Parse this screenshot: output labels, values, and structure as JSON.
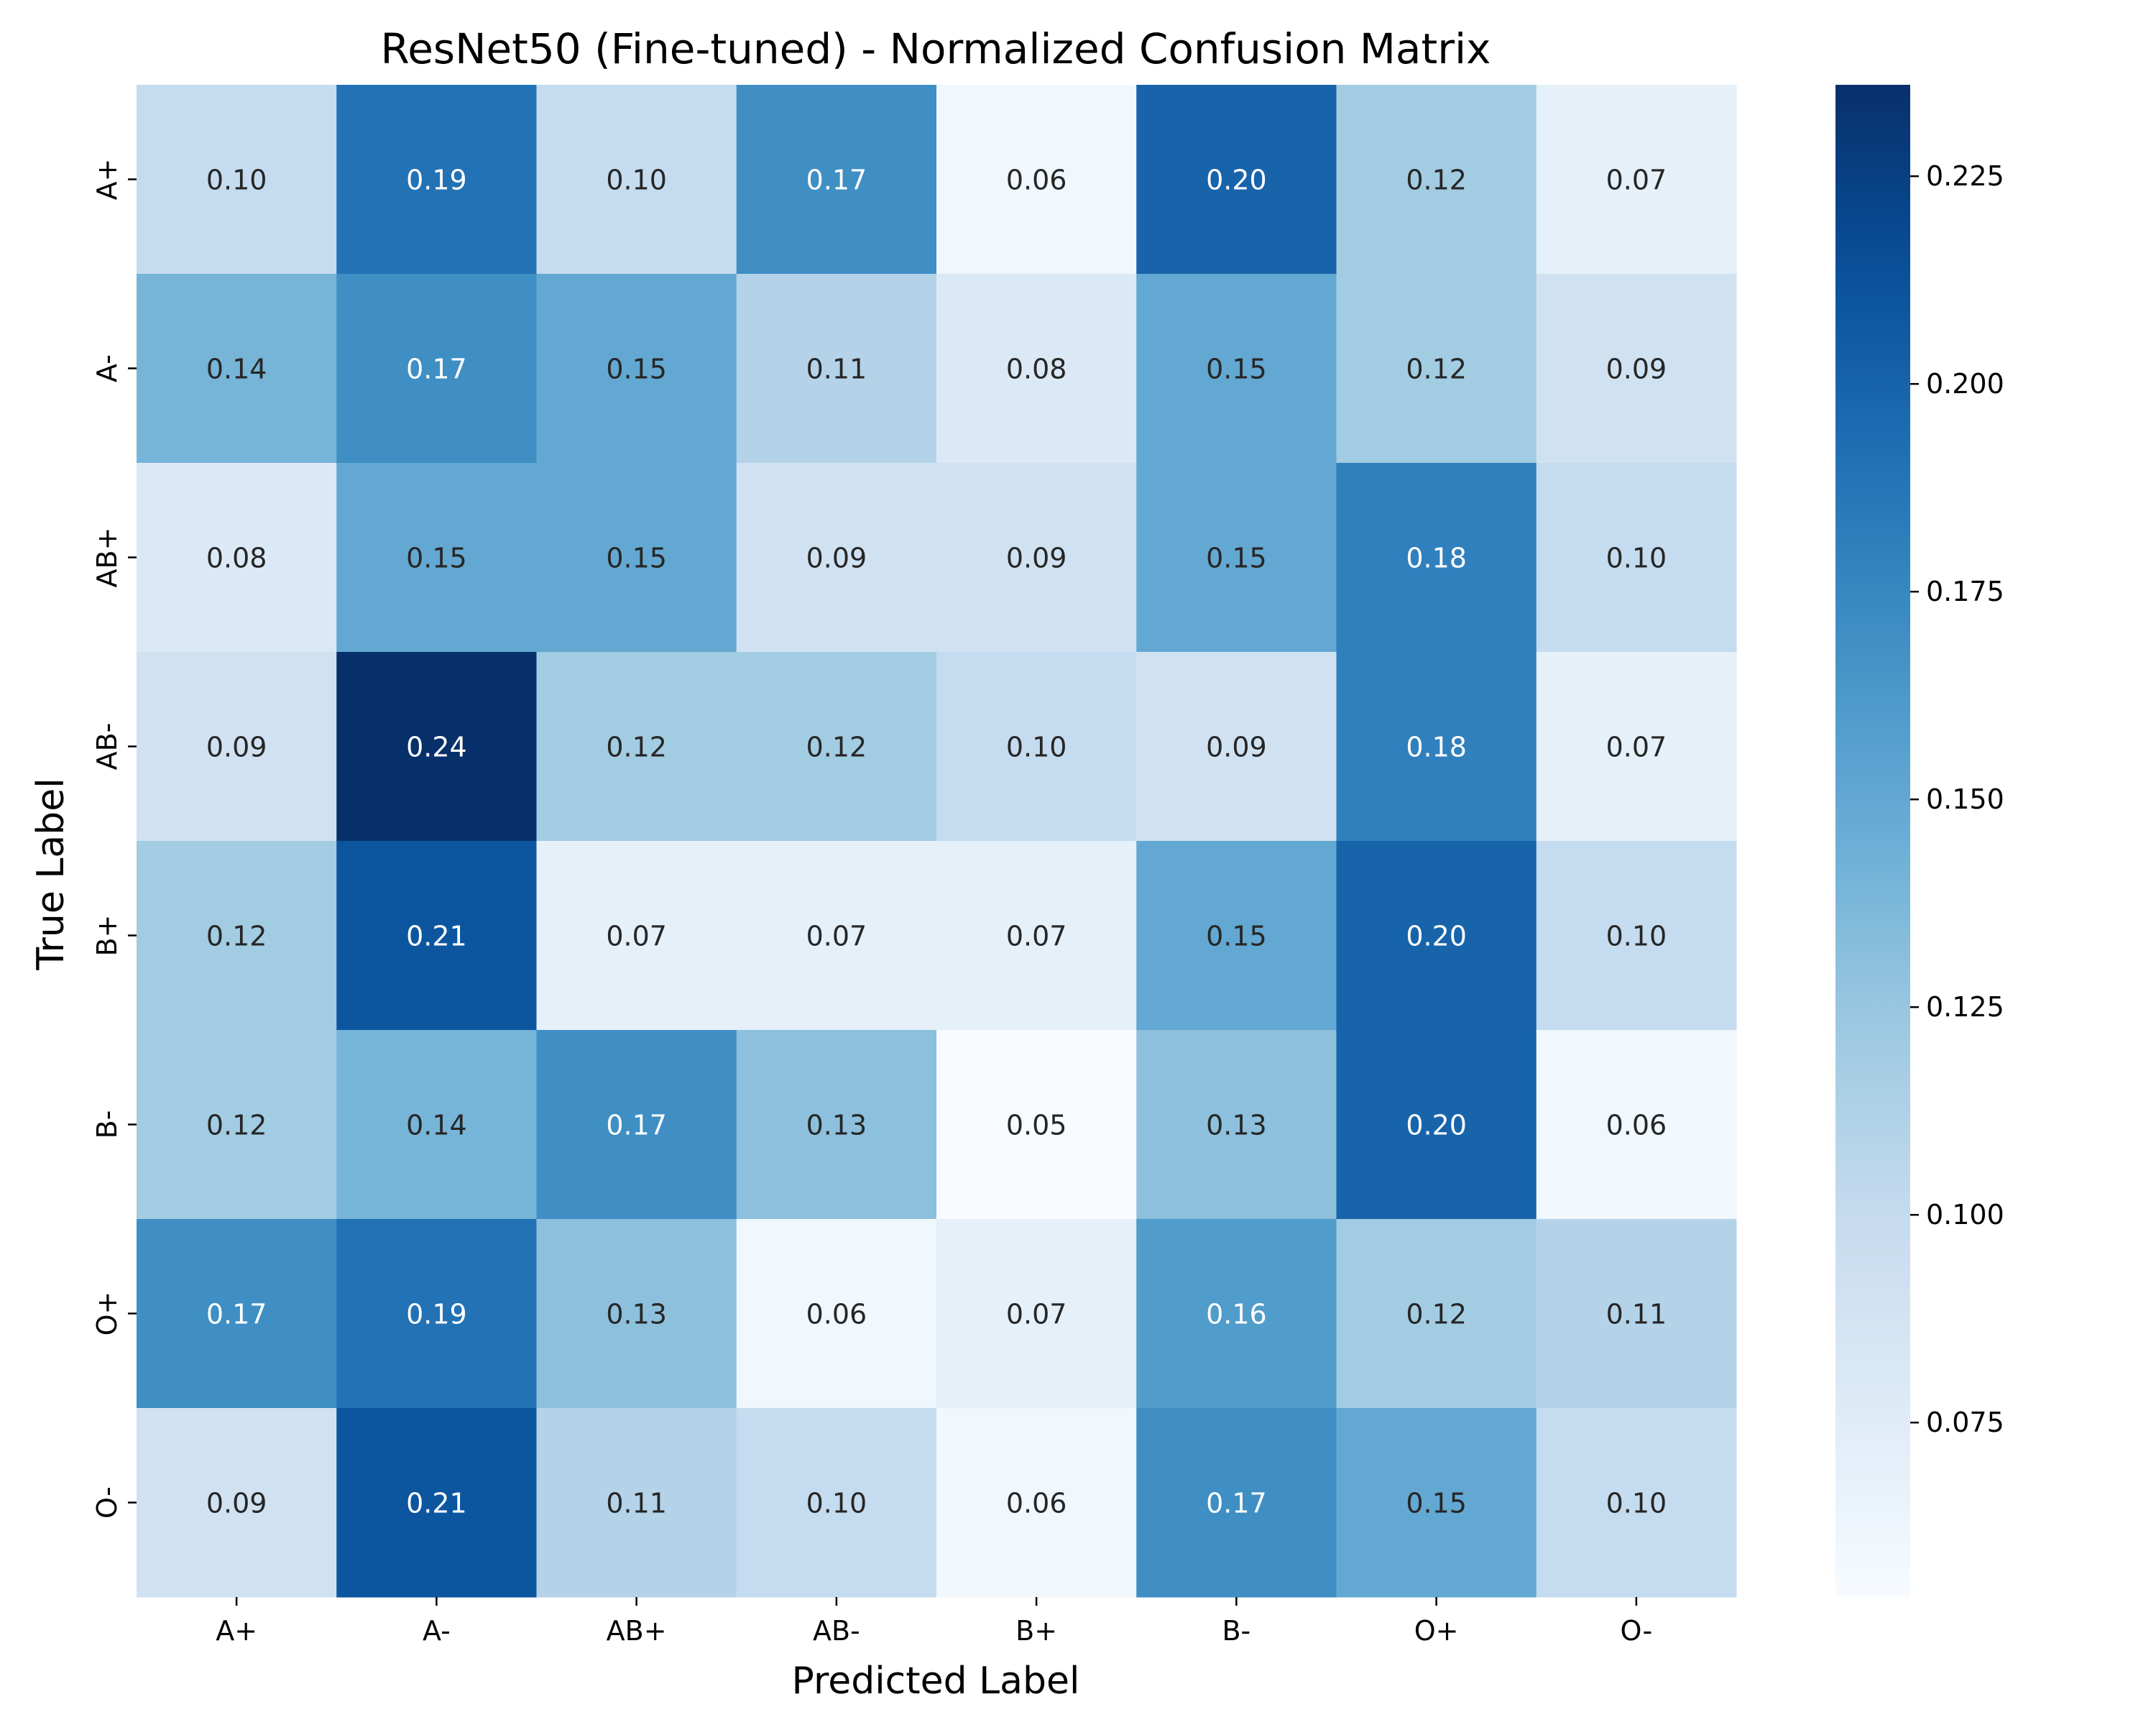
{
  "chart_data": {
    "type": "heatmap",
    "title": "ResNet50 (Fine-tuned) - Normalized Confusion Matrix",
    "xlabel": "Predicted Label",
    "ylabel": "True Label",
    "x_categories": [
      "A+",
      "A-",
      "AB+",
      "AB-",
      "B+",
      "B-",
      "O+",
      "O-"
    ],
    "y_categories": [
      "A+",
      "A-",
      "AB+",
      "AB-",
      "B+",
      "B-",
      "O+",
      "O-"
    ],
    "values": [
      [
        0.1,
        0.19,
        0.1,
        0.17,
        0.06,
        0.2,
        0.12,
        0.07
      ],
      [
        0.14,
        0.17,
        0.15,
        0.11,
        0.08,
        0.15,
        0.12,
        0.09
      ],
      [
        0.08,
        0.15,
        0.15,
        0.09,
        0.09,
        0.15,
        0.18,
        0.1
      ],
      [
        0.09,
        0.24,
        0.12,
        0.12,
        0.1,
        0.09,
        0.18,
        0.07
      ],
      [
        0.12,
        0.21,
        0.07,
        0.07,
        0.07,
        0.15,
        0.2,
        0.1
      ],
      [
        0.12,
        0.14,
        0.17,
        0.13,
        0.05,
        0.13,
        0.2,
        0.06
      ],
      [
        0.17,
        0.19,
        0.13,
        0.06,
        0.07,
        0.16,
        0.12,
        0.11
      ],
      [
        0.09,
        0.21,
        0.11,
        0.1,
        0.06,
        0.17,
        0.15,
        0.1
      ]
    ],
    "value_labels": [
      [
        "0.10",
        "0.19",
        "0.10",
        "0.17",
        "0.06",
        "0.20",
        "0.12",
        "0.07"
      ],
      [
        "0.14",
        "0.17",
        "0.15",
        "0.11",
        "0.08",
        "0.15",
        "0.12",
        "0.09"
      ],
      [
        "0.08",
        "0.15",
        "0.15",
        "0.09",
        "0.09",
        "0.15",
        "0.18",
        "0.10"
      ],
      [
        "0.09",
        "0.24",
        "0.12",
        "0.12",
        "0.10",
        "0.09",
        "0.18",
        "0.07"
      ],
      [
        "0.12",
        "0.21",
        "0.07",
        "0.07",
        "0.07",
        "0.15",
        "0.20",
        "0.10"
      ],
      [
        "0.12",
        "0.14",
        "0.17",
        "0.13",
        "0.05",
        "0.13",
        "0.20",
        "0.06"
      ],
      [
        "0.17",
        "0.19",
        "0.13",
        "0.06",
        "0.07",
        "0.16",
        "0.12",
        "0.11"
      ],
      [
        "0.09",
        "0.21",
        "0.11",
        "0.10",
        "0.06",
        "0.17",
        "0.15",
        "0.10"
      ]
    ],
    "colormap": "Blues",
    "colorbar": {
      "min": 0.054,
      "max": 0.236,
      "ticks": [
        0.075,
        0.1,
        0.125,
        0.15,
        0.175,
        0.2,
        0.225
      ],
      "tick_labels": [
        "0.075",
        "0.100",
        "0.125",
        "0.150",
        "0.175",
        "0.200",
        "0.225"
      ],
      "position": "right"
    }
  }
}
